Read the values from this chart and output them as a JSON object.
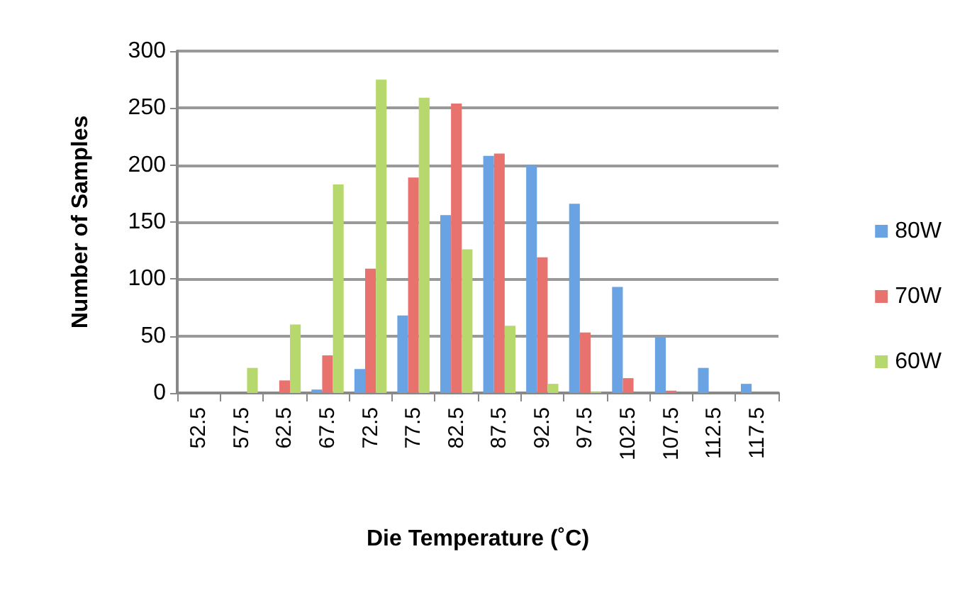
{
  "chart_data": {
    "type": "bar",
    "xlabel": "Die Temperature (˚C)",
    "ylabel": "Number of Samples",
    "categories": [
      "52.5",
      "57.5",
      "62.5",
      "67.5",
      "72.5",
      "77.5",
      "82.5",
      "87.5",
      "92.5",
      "97.5",
      "102.5",
      "107.5",
      "112.5",
      "117.5"
    ],
    "series": [
      {
        "name": "80W",
        "color": "#6aa3e4",
        "values": [
          0,
          0,
          0,
          3,
          21,
          68,
          156,
          208,
          200,
          166,
          93,
          49,
          22,
          8
        ]
      },
      {
        "name": "70W",
        "color": "#e8726e",
        "values": [
          0,
          0,
          11,
          33,
          109,
          189,
          254,
          210,
          119,
          53,
          13,
          2,
          0,
          0
        ]
      },
      {
        "name": "60W",
        "color": "#b6d86c",
        "values": [
          0,
          22,
          60,
          183,
          275,
          259,
          126,
          59,
          8,
          1,
          0,
          0,
          0,
          0
        ]
      }
    ],
    "ylim": [
      0,
      300
    ],
    "yticks": [
      0,
      50,
      100,
      150,
      200,
      250,
      300
    ],
    "grid": "y",
    "legend": "right"
  }
}
